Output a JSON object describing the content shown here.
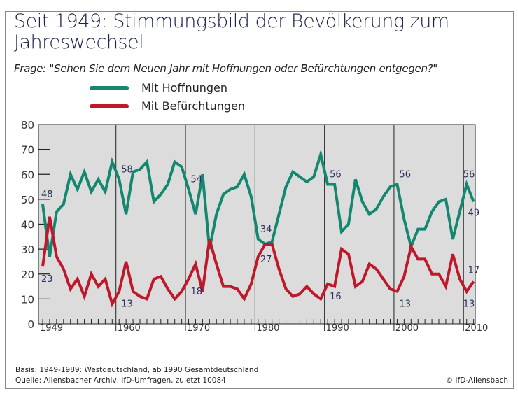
{
  "title": "Seit 1949: Stimmungsbild der Bevölkerung zum Jahreswechsel",
  "question": "Frage: \"Sehen Sie dem Neuen Jahr mit Hoffnungen oder Befürchtungen entgegen?\"",
  "footer": {
    "basis": "Basis: 1949-1989: Westdeutschland, ab 1990 Gesamtdeutschland",
    "source": "Quelle: Allensbacher Archiv, IfD-Umfragen, zuletzt 10084",
    "copyright": "© IfD-Allensbach"
  },
  "chart_data": {
    "type": "line",
    "title": "Seit 1949: Stimmungsbild der Bevölkerung zum Jahreswechsel",
    "xlabel": "",
    "ylabel": "",
    "ylim": [
      0,
      80
    ],
    "yticks": [
      "0",
      "10",
      "20",
      "30",
      "40",
      "50",
      "60",
      "70",
      "80"
    ],
    "xtick_labels": [
      "1949",
      "1960",
      "1970",
      "1980",
      "1990",
      "2000",
      "2010"
    ],
    "grid": false,
    "background": "#dcdcdc",
    "legend_placement": "top-left",
    "x_start": 1949,
    "series": [
      {
        "name": "Mit Hoffnungen",
        "color": "#13876f",
        "values": [
          48,
          27,
          45,
          48,
          60,
          54,
          61,
          53,
          58,
          53,
          65,
          58,
          44,
          61,
          62,
          65,
          49,
          52,
          56,
          65,
          63,
          54,
          44,
          60,
          30,
          44,
          52,
          54,
          55,
          60,
          51,
          34,
          32,
          33,
          44,
          55,
          61,
          59,
          57,
          59,
          68,
          56,
          56,
          37,
          40,
          58,
          49,
          44,
          46,
          51,
          55,
          56,
          42,
          31,
          38,
          38,
          45,
          49,
          50,
          34,
          45,
          56,
          49
        ]
      },
      {
        "name": "Mit Befürchtungen",
        "color": "#c0182b",
        "values": [
          23,
          43,
          27,
          22,
          14,
          18,
          11,
          20,
          15,
          18,
          8,
          13,
          25,
          13,
          11,
          10,
          18,
          19,
          14,
          10,
          13,
          18,
          24,
          13,
          34,
          24,
          15,
          15,
          14,
          10,
          16,
          27,
          32,
          32,
          22,
          14,
          11,
          12,
          15,
          12,
          10,
          16,
          15,
          30,
          28,
          15,
          17,
          24,
          22,
          18,
          14,
          13,
          19,
          31,
          26,
          26,
          20,
          20,
          15,
          28,
          18,
          13,
          17
        ]
      }
    ],
    "annotations": [
      {
        "year": 1949,
        "series": 0,
        "text": "48"
      },
      {
        "year": 1949,
        "series": 1,
        "text": "23"
      },
      {
        "year": 1960,
        "series": 0,
        "text": "58"
      },
      {
        "year": 1960,
        "series": 1,
        "text": "13"
      },
      {
        "year": 1970,
        "series": 0,
        "text": "54"
      },
      {
        "year": 1970,
        "series": 1,
        "text": "18"
      },
      {
        "year": 1980,
        "series": 0,
        "text": "34"
      },
      {
        "year": 1980,
        "series": 1,
        "text": "27"
      },
      {
        "year": 1990,
        "series": 0,
        "text": "56"
      },
      {
        "year": 1990,
        "series": 1,
        "text": "16"
      },
      {
        "year": 2000,
        "series": 0,
        "text": "56"
      },
      {
        "year": 2000,
        "series": 1,
        "text": "13"
      },
      {
        "year": 2010,
        "series": 0,
        "text": "56"
      },
      {
        "year": 2010,
        "series": 1,
        "text": "13"
      },
      {
        "year": 2011,
        "series": 0,
        "text": "49"
      },
      {
        "year": 2011,
        "series": 1,
        "text": "17"
      }
    ]
  }
}
